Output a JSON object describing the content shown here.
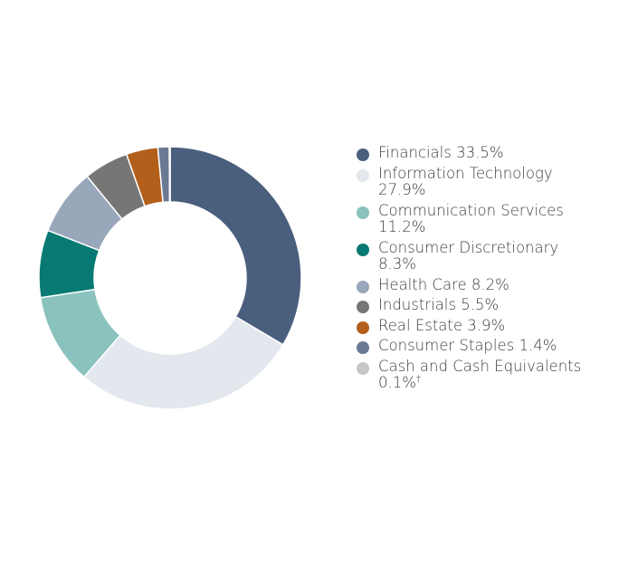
{
  "chart_data": {
    "type": "pie",
    "categories": [
      "Financials",
      "Information Technology",
      "Communication Services",
      "Consumer Discretionary",
      "Health Care",
      "Industrials",
      "Real Estate",
      "Consumer Staples",
      "Cash and Cash Equivalents"
    ],
    "values": [
      33.5,
      27.9,
      11.2,
      8.3,
      8.2,
      5.5,
      3.9,
      1.4,
      0.1
    ],
    "value_labels": [
      "33.5%",
      "27.9%",
      "11.2%",
      "8.3%",
      "8.2%",
      "5.5%",
      "3.9%",
      "1.4%",
      "0.1%"
    ],
    "colors": [
      "#4a5f7e",
      "#e3e7ee",
      "#8ac2be",
      "#087a73",
      "#98a7ba",
      "#767676",
      "#b35f1c",
      "#6b7a93",
      "#c6c6c6"
    ],
    "legend_notes": [
      "",
      "",
      "",
      "",
      "",
      "",
      "",
      "",
      "†"
    ],
    "donut": true,
    "legend_position": "right"
  }
}
